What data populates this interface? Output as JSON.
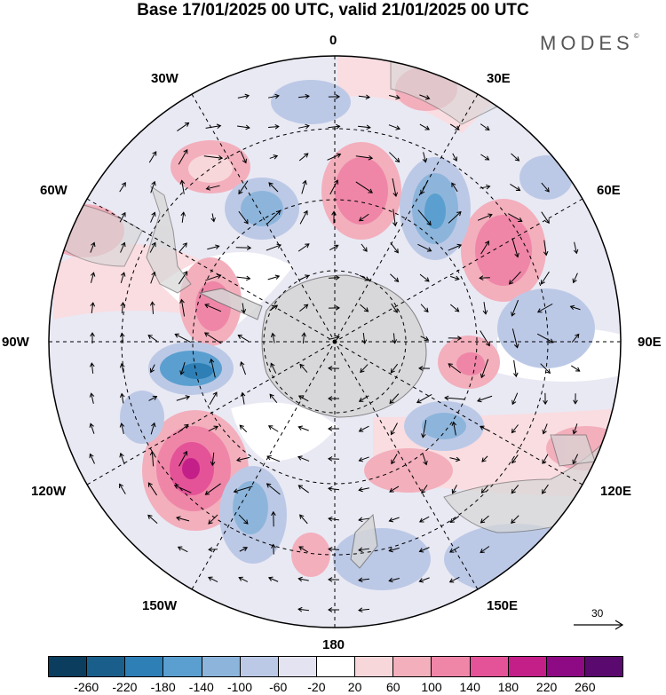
{
  "title": "Base 17/01/2025 00 UTC, valid 21/01/2025 00 UTC",
  "brand": "MODES",
  "brand_mark": "©",
  "lon_labels": {
    "l0": "0",
    "l30e": "30E",
    "l60e": "60E",
    "l90e": "90E",
    "l120e": "120E",
    "l150e": "150E",
    "l180": "180",
    "l150w": "150W",
    "l120w": "120W",
    "l90w": "90W",
    "l60w": "60W",
    "l30w": "30W"
  },
  "reference_vector": "30",
  "colorbar": {
    "colors": [
      "#0a3d5e",
      "#1a5f8c",
      "#2e7fb5",
      "#5a9fcf",
      "#8db5db",
      "#bcc9e6",
      "#e3e3f1",
      "#ffffff",
      "#f8d7da",
      "#f3afbc",
      "#ef86a8",
      "#e45397",
      "#c41f89",
      "#8e0a84",
      "#5a0a6e"
    ],
    "ticks": [
      "-260",
      "-220",
      "-180",
      "-140",
      "-100",
      "-60",
      "-20",
      "20",
      "60",
      "100",
      "140",
      "180",
      "220",
      "260"
    ]
  },
  "map_colors": {
    "land": "#d6d6d6",
    "coast": "#6f6f6f",
    "grid": "#000000"
  }
}
